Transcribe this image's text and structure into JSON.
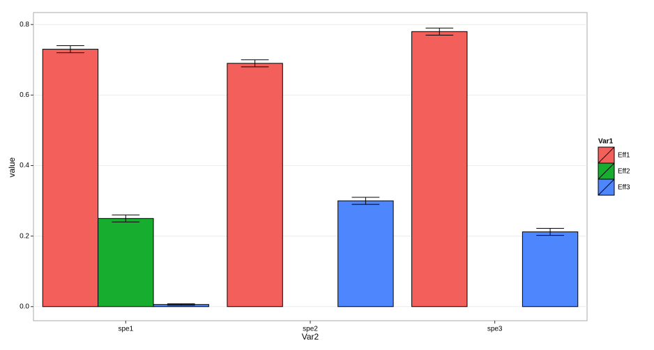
{
  "chart_data": {
    "type": "bar",
    "x_label": "Var2",
    "y_label": "value",
    "categories": [
      "spe1",
      "spe2",
      "spe3"
    ],
    "legend_title": "Var1",
    "legend_position": "right",
    "series": [
      {
        "name": "Eff1",
        "color": "#f35f5a",
        "values": [
          0.73,
          0.69,
          0.78
        ],
        "errors": [
          0.01,
          0.01,
          0.01
        ]
      },
      {
        "name": "Eff2",
        "color": "#17ae2f",
        "values": [
          0.25,
          0,
          0
        ],
        "errors": [
          0.01,
          0,
          0
        ]
      },
      {
        "name": "Eff3",
        "color": "#4d86fd",
        "values": [
          0.006,
          0.3,
          0.212
        ],
        "errors": [
          0.002,
          0.01,
          0.01
        ]
      }
    ],
    "ylim": [
      -0.04,
      0.834
    ],
    "yticks": [
      {
        "value": 0,
        "label": "0.0"
      },
      0.2,
      0.4,
      0.6,
      0.8
    ],
    "grid": true
  }
}
